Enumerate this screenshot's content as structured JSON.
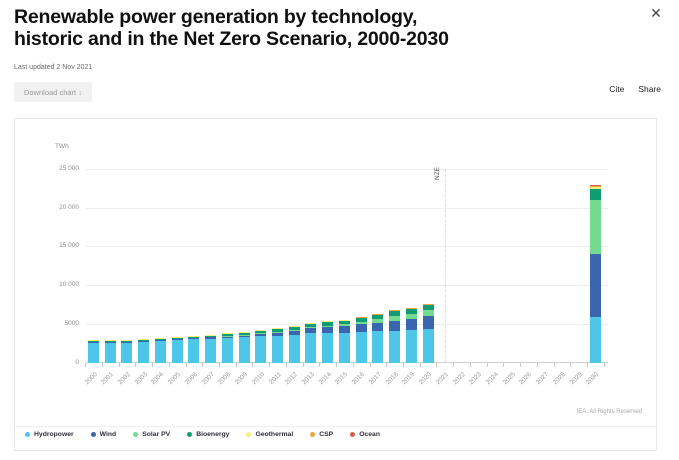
{
  "header": {
    "title_line1": "Renewable power generation by technology,",
    "title_line2": "historic and in the Net Zero Scenario, 2000-2030",
    "last_updated": "Last updated 2 Nov 2021",
    "download_label": "Download chart ↓",
    "cite_label": "Cite",
    "share_label": "Share",
    "close_glyph": "✕"
  },
  "chart": {
    "unit_label": "TWh",
    "copyright": "IEA. All Rights Reserved"
  },
  "chart_data": {
    "type": "bar",
    "stacked": true,
    "title": "Renewable power generation by technology, historic and in the Net Zero Scenario, 2000-2030",
    "ylabel": "TWh",
    "ylim": [
      0,
      26000
    ],
    "grid": true,
    "legend_position": "bottom",
    "yticks": [
      0,
      5000,
      10000,
      15000,
      20000,
      25000
    ],
    "ytick_labels": [
      "0",
      "5000",
      "10 000",
      "15 000",
      "20 000",
      "25 000"
    ],
    "categories": [
      "2000",
      "2001",
      "2002",
      "2003",
      "2004",
      "2005",
      "2006",
      "2007",
      "2008",
      "2009",
      "2010",
      "2011",
      "2012",
      "2013",
      "2014",
      "2015",
      "2016",
      "2017",
      "2018",
      "2019",
      "2020",
      "2021",
      "2022",
      "2023",
      "2024",
      "2025",
      "2026",
      "2027",
      "2028",
      "2029",
      "2030"
    ],
    "annotation": {
      "label": "NZE",
      "category": "2021"
    },
    "series": [
      {
        "name": "Hydropower",
        "color": "#4dc6e8",
        "values": [
          2690,
          2640,
          2700,
          2730,
          2850,
          2995,
          3080,
          3120,
          3260,
          3330,
          3440,
          3510,
          3670,
          3800,
          3900,
          3890,
          4030,
          4060,
          4170,
          4220,
          4420,
          0,
          0,
          0,
          0,
          0,
          0,
          0,
          0,
          0,
          5870
        ]
      },
      {
        "name": "Wind",
        "color": "#3a66b0",
        "values": [
          31,
          38,
          52,
          63,
          85,
          104,
          133,
          171,
          221,
          276,
          342,
          437,
          523,
          645,
          712,
          834,
          957,
          1136,
          1270,
          1420,
          1590,
          0,
          0,
          0,
          0,
          0,
          0,
          0,
          0,
          0,
          8100
        ]
      },
      {
        "name": "Solar PV",
        "color": "#72db90",
        "values": [
          1,
          1,
          2,
          3,
          3,
          4,
          6,
          8,
          12,
          20,
          32,
          63,
          97,
          134,
          190,
          247,
          328,
          443,
          585,
          694,
          820,
          0,
          0,
          0,
          0,
          0,
          0,
          0,
          0,
          0,
          6970
        ]
      },
      {
        "name": "Bioenergy",
        "color": "#109c72",
        "values": [
          164,
          170,
          180,
          193,
          209,
          227,
          248,
          266,
          284,
          310,
          370,
          400,
          430,
          460,
          490,
          530,
          570,
          610,
          650,
          690,
          720,
          0,
          0,
          0,
          0,
          0,
          0,
          0,
          0,
          0,
          1410
        ]
      },
      {
        "name": "Geothermal",
        "color": "#f5f07d",
        "values": [
          52,
          52,
          52,
          54,
          56,
          58,
          59,
          62,
          65,
          67,
          68,
          69,
          70,
          72,
          75,
          80,
          82,
          85,
          89,
          92,
          95,
          0,
          0,
          0,
          0,
          0,
          0,
          0,
          0,
          0,
          330
        ]
      },
      {
        "name": "CSP",
        "color": "#e9a63e",
        "values": [
          1,
          1,
          1,
          1,
          1,
          1,
          1,
          1,
          1,
          1,
          2,
          3,
          5,
          6,
          9,
          10,
          11,
          12,
          12,
          13,
          14,
          0,
          0,
          0,
          0,
          0,
          0,
          0,
          0,
          0,
          205
        ]
      },
      {
        "name": "Ocean",
        "color": "#d2604c",
        "values": [
          1,
          1,
          1,
          1,
          1,
          1,
          1,
          1,
          1,
          1,
          1,
          1,
          1,
          1,
          1,
          1,
          1,
          1,
          1,
          1,
          1,
          0,
          0,
          0,
          0,
          0,
          0,
          0,
          0,
          0,
          55
        ]
      }
    ]
  }
}
